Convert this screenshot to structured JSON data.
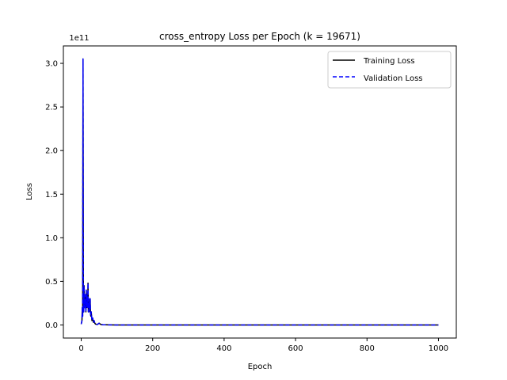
{
  "chart_data": {
    "type": "line",
    "title": "cross_entropy Loss per Epoch (k = 19671)",
    "xlabel": "Epoch",
    "ylabel": "Loss",
    "y_offset_label": "1e11",
    "xlim": [
      -50,
      1050
    ],
    "ylim": [
      -0.15,
      3.2
    ],
    "y_unit_multiplier": 100000000000.0,
    "x_ticks": [
      0,
      200,
      400,
      600,
      800,
      1000
    ],
    "x_tick_labels": [
      "0",
      "200",
      "400",
      "600",
      "800",
      "1000"
    ],
    "y_ticks": [
      0,
      0.5,
      1.0,
      1.5,
      2.0,
      2.5,
      3.0
    ],
    "y_tick_labels": [
      "0.0",
      "0.5",
      "1.0",
      "1.5",
      "2.0",
      "2.5",
      "3.0"
    ],
    "grid": false,
    "legend_position": "top-right",
    "series": [
      {
        "name": "Training Loss",
        "color": "#000000",
        "style": "solid",
        "x": [
          0,
          2,
          3,
          4,
          5,
          6,
          7,
          8,
          9,
          10,
          11,
          12,
          13,
          14,
          15,
          16,
          17,
          18,
          19,
          20,
          21,
          22,
          23,
          24,
          25,
          26,
          27,
          28,
          30,
          32,
          34,
          36,
          38,
          40,
          45,
          50,
          55,
          60,
          70,
          80,
          100,
          150,
          200,
          300,
          400,
          500,
          600,
          700,
          800,
          900,
          1000
        ],
        "y": [
          0.01,
          0.05,
          0.2,
          0.1,
          3.05,
          0.3,
          0.15,
          0.45,
          0.2,
          0.35,
          0.2,
          0.3,
          0.15,
          0.4,
          0.2,
          0.35,
          0.25,
          0.2,
          0.48,
          0.15,
          0.3,
          0.2,
          0.25,
          0.15,
          0.3,
          0.12,
          0.1,
          0.15,
          0.05,
          0.08,
          0.03,
          0.05,
          0.02,
          0.01,
          0.005,
          0.02,
          0.005,
          0.003,
          0.002,
          0.001,
          0.0,
          0.0,
          0.0,
          0.0,
          0.0,
          0.0,
          0.0,
          0.0,
          0.0,
          0.0,
          0.0
        ]
      },
      {
        "name": "Validation Loss",
        "color": "#0000ff",
        "style": "dashed",
        "x": [
          0,
          2,
          3,
          4,
          5,
          6,
          7,
          8,
          9,
          10,
          11,
          12,
          13,
          14,
          15,
          16,
          17,
          18,
          19,
          20,
          21,
          22,
          23,
          24,
          25,
          26,
          27,
          28,
          30,
          32,
          34,
          36,
          38,
          40,
          45,
          50,
          55,
          60,
          70,
          80,
          100,
          150,
          200,
          300,
          400,
          500,
          600,
          700,
          800,
          900,
          1000
        ],
        "y": [
          0.01,
          0.05,
          0.2,
          0.1,
          3.05,
          0.3,
          0.15,
          0.45,
          0.2,
          0.35,
          0.2,
          0.3,
          0.15,
          0.4,
          0.2,
          0.35,
          0.25,
          0.2,
          0.48,
          0.15,
          0.3,
          0.2,
          0.25,
          0.15,
          0.3,
          0.12,
          0.1,
          0.15,
          0.05,
          0.08,
          0.03,
          0.05,
          0.02,
          0.01,
          0.005,
          0.02,
          0.005,
          0.003,
          0.002,
          0.001,
          0.0,
          0.0,
          0.0,
          0.0,
          0.0,
          0.0,
          0.0,
          0.0,
          0.0,
          0.0,
          0.0
        ]
      }
    ]
  }
}
